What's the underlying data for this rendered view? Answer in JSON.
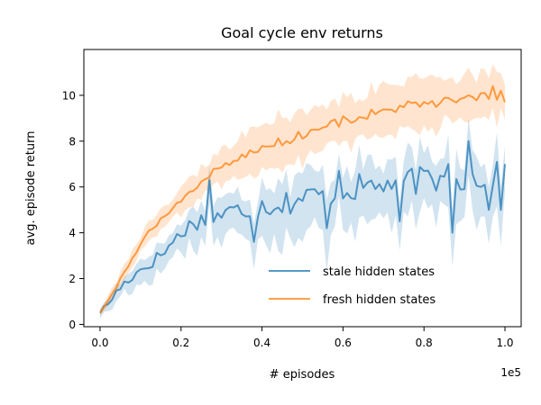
{
  "chart_data": {
    "type": "line",
    "title": "Goal cycle env returns",
    "xlabel": "# episodes",
    "ylabel": "avg. episode return",
    "x_offset_text": "1e5",
    "xlim": [
      -0.04,
      1.04
    ],
    "ylim": [
      -0.1,
      12.0
    ],
    "xticks": [
      0.0,
      0.2,
      0.4,
      0.6,
      0.8,
      1.0
    ],
    "xtick_labels": [
      "0.0",
      "0.2",
      "0.4",
      "0.6",
      "0.8",
      "1.0"
    ],
    "yticks": [
      0,
      2,
      4,
      6,
      8,
      10
    ],
    "ytick_labels": [
      "0",
      "2",
      "4",
      "6",
      "8",
      "10"
    ],
    "grid": false,
    "legend_position": "lower-right",
    "series": [
      {
        "name": "stale hidden states",
        "color": "#1f77b4",
        "anchors": [
          [
            0.0,
            0.5
          ],
          [
            0.02,
            0.9
          ],
          [
            0.04,
            1.4
          ],
          [
            0.06,
            1.8
          ],
          [
            0.08,
            2.1
          ],
          [
            0.1,
            2.4
          ],
          [
            0.12,
            2.6
          ],
          [
            0.14,
            2.9
          ],
          [
            0.16,
            3.2
          ],
          [
            0.18,
            3.6
          ],
          [
            0.2,
            4.0
          ],
          [
            0.22,
            4.3
          ],
          [
            0.24,
            4.5
          ],
          [
            0.26,
            4.6
          ],
          [
            0.28,
            4.7
          ],
          [
            0.3,
            4.8
          ],
          [
            0.32,
            4.9
          ],
          [
            0.35,
            5.0
          ],
          [
            0.4,
            5.2
          ],
          [
            0.45,
            5.3
          ],
          [
            0.5,
            5.5
          ],
          [
            0.55,
            5.7
          ],
          [
            0.6,
            5.9
          ],
          [
            0.65,
            6.0
          ],
          [
            0.7,
            6.1
          ],
          [
            0.75,
            6.2
          ],
          [
            0.8,
            6.3
          ],
          [
            0.85,
            6.3
          ],
          [
            0.9,
            6.4
          ],
          [
            0.95,
            6.5
          ],
          [
            1.0,
            6.5
          ]
        ],
        "final_value": 7.0,
        "noise_amplitude": 0.6,
        "band_halfwidth": 0.7,
        "spikes": [
          [
            0.272,
            6.3
          ],
          [
            0.375,
            3.6
          ],
          [
            0.555,
            4.2
          ],
          [
            0.585,
            6.7
          ],
          [
            0.74,
            4.5
          ],
          [
            0.77,
            6.8
          ],
          [
            0.86,
            7.0
          ],
          [
            0.872,
            4.0
          ],
          [
            0.91,
            8.0
          ],
          [
            0.94,
            6.0
          ],
          [
            0.96,
            5.0
          ],
          [
            0.985,
            5.0
          ]
        ]
      },
      {
        "name": "fresh hidden states",
        "color": "#ff7f0e",
        "anchors": [
          [
            0.0,
            0.5
          ],
          [
            0.02,
            1.0
          ],
          [
            0.04,
            1.6
          ],
          [
            0.06,
            2.3
          ],
          [
            0.08,
            2.9
          ],
          [
            0.1,
            3.5
          ],
          [
            0.12,
            4.0
          ],
          [
            0.14,
            4.4
          ],
          [
            0.16,
            4.8
          ],
          [
            0.18,
            5.1
          ],
          [
            0.2,
            5.4
          ],
          [
            0.22,
            5.7
          ],
          [
            0.24,
            6.0
          ],
          [
            0.26,
            6.4
          ],
          [
            0.28,
            6.7
          ],
          [
            0.3,
            6.9
          ],
          [
            0.35,
            7.3
          ],
          [
            0.4,
            7.7
          ],
          [
            0.45,
            8.0
          ],
          [
            0.5,
            8.3
          ],
          [
            0.55,
            8.6
          ],
          [
            0.6,
            8.9
          ],
          [
            0.65,
            9.1
          ],
          [
            0.7,
            9.3
          ],
          [
            0.75,
            9.5
          ],
          [
            0.8,
            9.6
          ],
          [
            0.85,
            9.7
          ],
          [
            0.9,
            9.8
          ],
          [
            0.95,
            9.9
          ],
          [
            1.0,
            10.0
          ]
        ],
        "final_value": 9.7,
        "noise_amplitude": 0.22,
        "band_halfwidth": 0.7,
        "spikes": [
          [
            0.97,
            10.4
          ],
          [
            0.99,
            10.2
          ]
        ]
      }
    ]
  }
}
